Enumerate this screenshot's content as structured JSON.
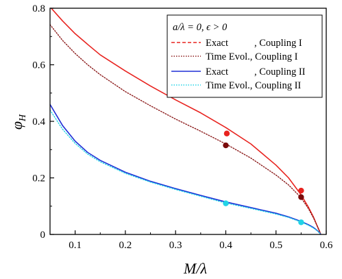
{
  "chart_data": {
    "type": "line",
    "xlabel": "M/λ",
    "ylabel": "φ_H",
    "ylabel_main": "φ",
    "ylabel_sub": "H",
    "xlim": [
      0.05,
      0.6
    ],
    "ylim": [
      0,
      0.8
    ],
    "xticks": [
      0.1,
      0.2,
      0.3,
      0.4,
      0.5,
      0.6
    ],
    "xtick_labels": [
      "0.1",
      "0.2",
      "0.3",
      "0.4",
      "0.5",
      "0.6"
    ],
    "yticks": [
      0,
      0.2,
      0.4,
      0.6,
      0.8
    ],
    "ytick_labels": [
      "0",
      "0.2",
      "0.4",
      "0.6",
      "0.8"
    ],
    "legend": {
      "title": "a/λ = 0, ϵ > 0",
      "position": "top-right",
      "entries": [
        "Exact",
        ", Coupling I",
        "Time Evol., Coupling I",
        "Exact",
        ", Coupling II",
        "Time Evol., Coupling II"
      ]
    },
    "grid": false,
    "series": [
      {
        "name": "Exact, Coupling I",
        "color": "#e8231f",
        "style": "solid",
        "x": [
          0.05,
          0.075,
          0.1,
          0.125,
          0.15,
          0.2,
          0.25,
          0.3,
          0.35,
          0.4,
          0.45,
          0.5,
          0.525,
          0.55,
          0.565,
          0.575,
          0.582,
          0.587,
          0.589
        ],
        "y": [
          0.805,
          0.755,
          0.71,
          0.672,
          0.635,
          0.578,
          0.525,
          0.476,
          0.43,
          0.378,
          0.32,
          0.245,
          0.2,
          0.14,
          0.095,
          0.06,
          0.03,
          0.01,
          0.0
        ]
      },
      {
        "name": "Time Evol., Coupling I",
        "color": "#8b1a1a",
        "style": "dotted",
        "x": [
          0.05,
          0.075,
          0.1,
          0.125,
          0.15,
          0.2,
          0.25,
          0.3,
          0.35,
          0.4,
          0.45,
          0.5,
          0.525,
          0.55,
          0.565,
          0.575,
          0.582,
          0.587,
          0.589
        ],
        "y": [
          0.742,
          0.686,
          0.64,
          0.6,
          0.565,
          0.505,
          0.455,
          0.408,
          0.365,
          0.32,
          0.27,
          0.21,
          0.175,
          0.13,
          0.09,
          0.057,
          0.03,
          0.01,
          0.0
        ]
      },
      {
        "name": "Exact, Coupling II",
        "color": "#1f2fd6",
        "style": "solid",
        "x": [
          0.05,
          0.075,
          0.1,
          0.125,
          0.15,
          0.2,
          0.25,
          0.3,
          0.35,
          0.4,
          0.45,
          0.5,
          0.525,
          0.55,
          0.565,
          0.575,
          0.582,
          0.587,
          0.589
        ],
        "y": [
          0.46,
          0.385,
          0.33,
          0.29,
          0.262,
          0.22,
          0.188,
          0.162,
          0.138,
          0.115,
          0.095,
          0.075,
          0.062,
          0.046,
          0.034,
          0.024,
          0.014,
          0.005,
          0.0
        ]
      },
      {
        "name": "Time Evol., Coupling II",
        "color": "#22d3e6",
        "style": "dotted",
        "x": [
          0.05,
          0.075,
          0.1,
          0.125,
          0.15,
          0.2,
          0.25,
          0.3,
          0.35,
          0.4,
          0.45,
          0.5,
          0.525,
          0.55,
          0.565,
          0.575,
          0.582,
          0.587,
          0.589
        ],
        "y": [
          0.44,
          0.372,
          0.322,
          0.284,
          0.257,
          0.216,
          0.185,
          0.159,
          0.135,
          0.111,
          0.092,
          0.072,
          0.06,
          0.044,
          0.032,
          0.022,
          0.013,
          0.005,
          0.0
        ]
      }
    ],
    "markers": [
      {
        "x": 0.402,
        "y": 0.357,
        "color": "#e8231f"
      },
      {
        "x": 0.4,
        "y": 0.315,
        "color": "#7a0a0a"
      },
      {
        "x": 0.4,
        "y": 0.11,
        "color": "#22d3e6"
      },
      {
        "x": 0.55,
        "y": 0.155,
        "color": "#e8231f"
      },
      {
        "x": 0.55,
        "y": 0.132,
        "color": "#7a0a0a"
      },
      {
        "x": 0.55,
        "y": 0.043,
        "color": "#22d3e6"
      }
    ]
  }
}
